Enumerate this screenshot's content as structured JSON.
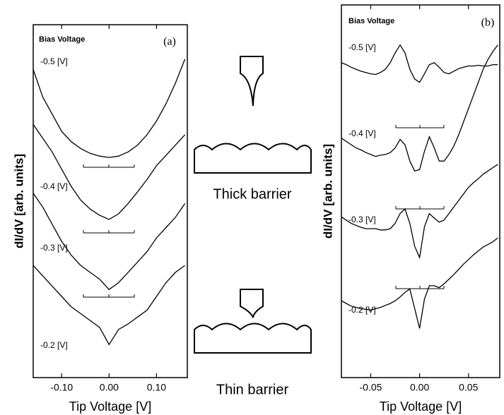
{
  "chart_data": [
    {
      "type": "line",
      "panel_label": "(a)",
      "legend_title": "Bias Voltage",
      "xlabel": "Tip Voltage [V]",
      "ylabel": "dI/dV [arb. units]",
      "xlim": [
        -0.16,
        0.165
      ],
      "ylim": [
        0,
        513
      ],
      "xticks": [
        {
          "value": -0.1,
          "label": "-0.10"
        },
        {
          "value": 0,
          "label": "0.00"
        },
        {
          "value": 0.1,
          "label": "0.10"
        }
      ],
      "x": [
        -0.16,
        -0.14,
        -0.12,
        -0.1,
        -0.08,
        -0.06,
        -0.04,
        -0.02,
        0,
        0.02,
        0.04,
        0.06,
        0.08,
        0.1,
        0.12,
        0.14,
        0.16
      ],
      "series": [
        {
          "name": "-0.5 [V]",
          "color": "#000000",
          "values": [
            448,
            408,
            383,
            358,
            343,
            333,
            326,
            322,
            320,
            322,
            328,
            338,
            353,
            373,
            398,
            428,
            463
          ]
        },
        {
          "name": "-0.4 [V]",
          "color": "#000000",
          "values": [
            368,
            348,
            328,
            303,
            278,
            258,
            245,
            236,
            230,
            238,
            253,
            270,
            288,
            308,
            323,
            338,
            353
          ]
        },
        {
          "name": "-0.3 [V]",
          "color": "#000000",
          "values": [
            268,
            248,
            223,
            198,
            178,
            163,
            153,
            143,
            128,
            138,
            153,
            168,
            183,
            203,
            218,
            233,
            253
          ]
        },
        {
          "name": "-0.2 [V]",
          "color": "#000000",
          "values": [
            163,
            148,
            133,
            118,
            103,
            93,
            83,
            73,
            48,
            70,
            78,
            88,
            98,
            118,
            138,
            153,
            163
          ]
        }
      ]
    },
    {
      "type": "line",
      "panel_label": "(b)",
      "legend_title": "Bias Voltage",
      "xlabel": "Tip Voltage [V]",
      "ylabel": "dI/dV [arb. units]",
      "xlim": [
        -0.08,
        0.082
      ],
      "ylim": [
        0,
        568
      ],
      "xticks": [
        {
          "value": -0.05,
          "label": "-0.05"
        },
        {
          "value": 0,
          "label": "0.00"
        },
        {
          "value": 0.05,
          "label": "0.05"
        }
      ],
      "x": [
        -0.08,
        -0.075,
        -0.07,
        -0.065,
        -0.06,
        -0.055,
        -0.05,
        -0.045,
        -0.04,
        -0.035,
        -0.03,
        -0.025,
        -0.02,
        -0.015,
        -0.01,
        -0.005,
        0,
        0.005,
        0.01,
        0.015,
        0.02,
        0.025,
        0.03,
        0.035,
        0.04,
        0.045,
        0.05,
        0.055,
        0.06,
        0.065,
        0.07,
        0.075,
        0.08
      ],
      "series": [
        {
          "name": "-0.5 [V]",
          "color": "#000000",
          "values": [
            480,
            477,
            473,
            470,
            467,
            465,
            463,
            462,
            465,
            470,
            480,
            495,
            507,
            495,
            470,
            455,
            450,
            463,
            477,
            480,
            473,
            465,
            463,
            467,
            471,
            473,
            475,
            475,
            476,
            475,
            475,
            477,
            477
          ]
        },
        {
          "name": "-0.4 [V]",
          "color": "#000000",
          "values": [
            365,
            360,
            355,
            350,
            347,
            343,
            340,
            337,
            339,
            340,
            343,
            350,
            363,
            355,
            330,
            315,
            317,
            345,
            367,
            350,
            330,
            330,
            340,
            353,
            370,
            390,
            410,
            430,
            450,
            470,
            485,
            497,
            507
          ]
        },
        {
          "name": "-0.3 [V]",
          "color": "#000000",
          "values": [
            245,
            240,
            235,
            232,
            229,
            227,
            227,
            227,
            225,
            225,
            227,
            235,
            250,
            257,
            235,
            200,
            183,
            230,
            250,
            243,
            237,
            240,
            250,
            260,
            270,
            280,
            290,
            297,
            303,
            310,
            315,
            320,
            325
          ]
        },
        {
          "name": "-0.2 [V]",
          "color": "#000000",
          "values": [
            117,
            113,
            109,
            107,
            105,
            104,
            103,
            105,
            107,
            110,
            113,
            117,
            123,
            130,
            135,
            105,
            75,
            120,
            140,
            140,
            137,
            143,
            150,
            157,
            165,
            173,
            180,
            187,
            193,
            199,
            203,
            207,
            213
          ]
        }
      ]
    }
  ],
  "figure_labels": [
    "Thick barrier",
    "Thin barrier"
  ]
}
